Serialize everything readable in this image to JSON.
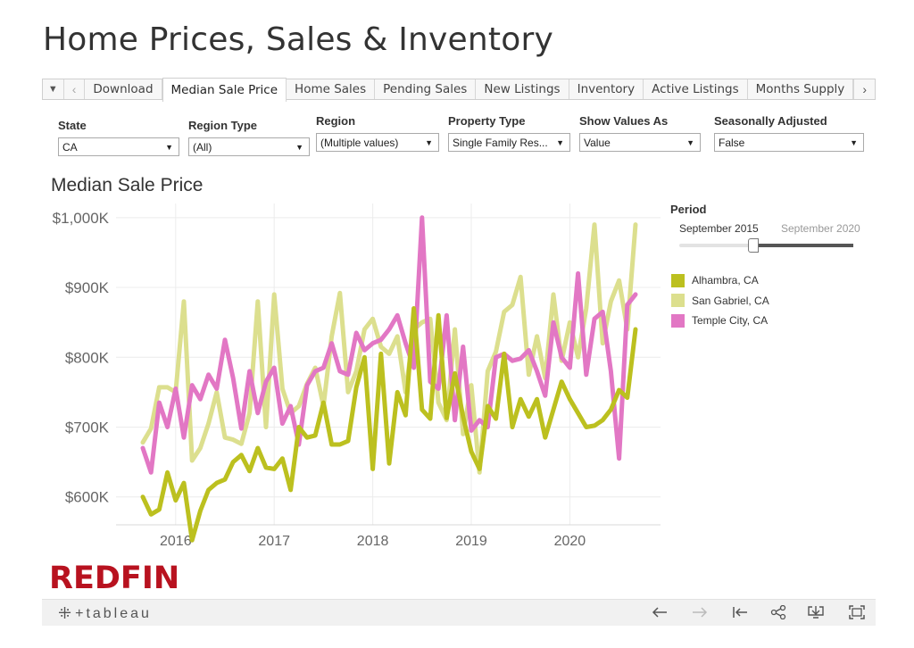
{
  "page": {
    "title": "Home Prices, Sales & Inventory"
  },
  "tabs": {
    "menu_icon": "dropdown-triangle-icon",
    "prev_icon": "chevron-left-icon",
    "next_icon": "chevron-right-icon",
    "items": [
      "Download",
      "Median Sale Price",
      "Home Sales",
      "Pending Sales",
      "New Listings",
      "Inventory",
      "Active Listings",
      "Months Supply"
    ],
    "active": "Median Sale Price"
  },
  "filters": [
    {
      "label": "State",
      "value": "CA"
    },
    {
      "label": "Region Type",
      "value": "(All)"
    },
    {
      "label": "Region",
      "value": "(Multiple values)"
    },
    {
      "label": "Property Type",
      "value": "Single Family Res..."
    },
    {
      "label": "Show Values As",
      "value": "Value"
    },
    {
      "label": "Seasonally Adjusted",
      "value": "False"
    }
  ],
  "period": {
    "label": "Period",
    "start": "September 2015",
    "end": "September 2020"
  },
  "logo": {
    "text": "REDFIN"
  },
  "footer": {
    "brand_mark": "⁜",
    "brand_text": "+tableau",
    "icons": [
      "undo-icon",
      "redo-icon",
      "revert-icon",
      "share-icon",
      "download-icon",
      "fullscreen-icon"
    ]
  },
  "colors": {
    "alhambra": "#bcc01f",
    "san_gabriel": "#dcdf8e",
    "temple_city": "#e277c4",
    "logo": "#b8121f"
  },
  "chart_data": {
    "type": "line",
    "title": "Median Sale Price",
    "xlabel": "",
    "ylabel": "",
    "x_ticks": [
      "2016",
      "2017",
      "2018",
      "2019",
      "2020"
    ],
    "y_ticks": [
      "$600K",
      "$700K",
      "$800K",
      "$900K",
      "$1,000K"
    ],
    "ylim": [
      560,
      1010
    ],
    "start": "2015-09",
    "grid": true,
    "legend_position": "right",
    "series": [
      {
        "name": "Alhambra, CA",
        "color": "#bcc01f",
        "values": [
          600,
          575,
          582,
          635,
          595,
          620,
          538,
          580,
          610,
          620,
          625,
          650,
          660,
          637,
          670,
          642,
          640,
          655,
          610,
          700,
          685,
          688,
          735,
          675,
          675,
          680,
          757,
          800,
          640,
          805,
          648,
          750,
          717,
          870,
          725,
          712,
          860,
          713,
          777,
          715,
          665,
          640,
          730,
          712,
          805,
          700,
          740,
          715,
          740,
          685,
          725,
          765,
          740,
          720,
          700,
          702,
          710,
          725,
          753,
          742,
          840
        ]
      },
      {
        "name": "San Gabriel, CA",
        "color": "#dcdf8e",
        "values": [
          678,
          698,
          757,
          757,
          750,
          880,
          652,
          670,
          705,
          750,
          685,
          682,
          676,
          720,
          880,
          700,
          890,
          755,
          720,
          730,
          762,
          785,
          730,
          830,
          892,
          750,
          780,
          840,
          855,
          815,
          805,
          830,
          750,
          840,
          850,
          855,
          735,
          710,
          840,
          690,
          760,
          635,
          780,
          808,
          865,
          875,
          915,
          775,
          830,
          770,
          890,
          795,
          850,
          800,
          870,
          990,
          820,
          880,
          910,
          840,
          990
        ]
      },
      {
        "name": "Temple City, CA",
        "color": "#e277c4",
        "values": [
          670,
          635,
          735,
          700,
          755,
          685,
          760,
          740,
          775,
          755,
          825,
          770,
          698,
          780,
          720,
          765,
          785,
          705,
          730,
          675,
          760,
          780,
          785,
          820,
          780,
          775,
          835,
          810,
          820,
          825,
          840,
          860,
          820,
          785,
          1000,
          765,
          755,
          860,
          710,
          815,
          695,
          710,
          700,
          800,
          805,
          795,
          798,
          810,
          780,
          745,
          850,
          800,
          785,
          920,
          775,
          855,
          865,
          780,
          655,
          875,
          890
        ]
      }
    ]
  }
}
